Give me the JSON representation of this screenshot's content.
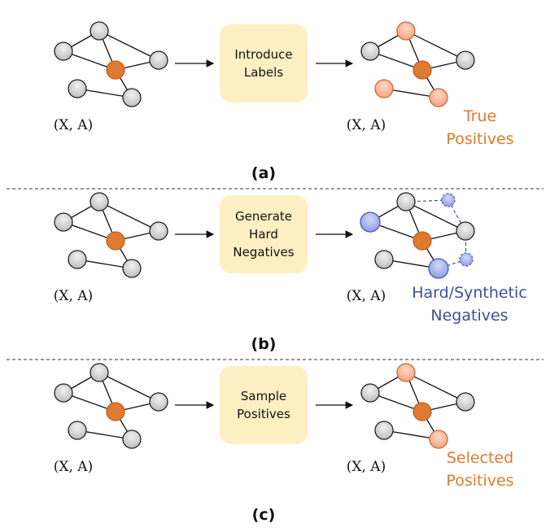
{
  "colors": {
    "anchor_node": "#e07a30",
    "positive_node": "#f4b89a",
    "negative_node": "#a9b6ec",
    "gray_node": "#cfcfcf",
    "box_fill": "#fcefc2",
    "positive_text": "#e07a30",
    "negative_text": "#3d4f9a"
  },
  "panels": [
    {
      "caption": "(a)",
      "input_label": "(X, A)",
      "output_label": "(X, A)",
      "box_lines": [
        "Introduce",
        "Labels"
      ],
      "note_lines": [
        "True",
        "Positives"
      ],
      "note_color": "positive"
    },
    {
      "caption": "(b)",
      "input_label": "(X, A)",
      "output_label": "(X, A)",
      "box_lines": [
        "Generate",
        "Hard",
        "Negatives"
      ],
      "note_lines": [
        "Hard/Synthetic",
        "Negatives"
      ],
      "note_color": "negative"
    },
    {
      "caption": "(c)",
      "input_label": "(X, A)",
      "output_label": "(X, A)",
      "box_lines": [
        "Sample",
        "Positives"
      ],
      "note_lines": [
        "Selected",
        "Positives"
      ],
      "note_color": "positive"
    }
  ]
}
